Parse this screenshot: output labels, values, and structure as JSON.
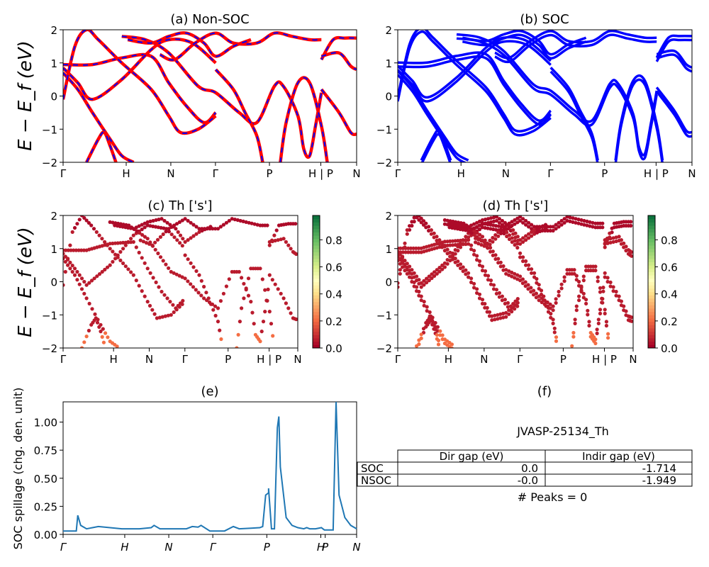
{
  "figure": {
    "ylabel_bands": "E − E_f (eV)",
    "ylabel_spillage": "SOC spillage (chg. den. unit)"
  },
  "band_ticks": [
    "Γ",
    "H",
    "N",
    "Γ",
    "P",
    "H | P",
    "N"
  ],
  "band_yticks": [
    "−2",
    "−1",
    "0",
    "1",
    "2"
  ],
  "colorbar_ticks": [
    "0.0",
    "0.2",
    "0.4",
    "0.6",
    "0.8"
  ],
  "chart_data": [
    {
      "id": "a",
      "type": "line",
      "title": "(a) Non-SOC",
      "ylim": [
        -2,
        2
      ],
      "colors": {
        "solid": "#ff0000",
        "dash": "#0000ff"
      },
      "x_labels": [
        "Γ",
        "H",
        "N",
        "Γ",
        "P",
        "H | P",
        "N"
      ]
    },
    {
      "id": "b",
      "type": "line",
      "title": "(b) SOC",
      "ylim": [
        -2,
        2
      ],
      "colors": {
        "line": "#0000ff"
      },
      "x_labels": [
        "Γ",
        "H",
        "N",
        "Γ",
        "P",
        "H | P",
        "N"
      ]
    },
    {
      "id": "c",
      "type": "scatter",
      "title": "(c)  Th ['s']",
      "ylim": [
        -2,
        2
      ],
      "colorbar": {
        "range": [
          0,
          1
        ],
        "colormap": "RdYlGn"
      },
      "x_labels": [
        "Γ",
        "H",
        "N",
        "Γ",
        "P",
        "H | P",
        "N"
      ]
    },
    {
      "id": "d",
      "type": "scatter",
      "title": "(d) Th ['s']",
      "ylim": [
        -2,
        2
      ],
      "colorbar": {
        "range": [
          0,
          1
        ],
        "colormap": "RdYlGn"
      },
      "x_labels": [
        "Γ",
        "H",
        "N",
        "Γ",
        "P",
        "H | P",
        "N"
      ]
    },
    {
      "id": "e",
      "type": "line",
      "title": "(e)",
      "ylabel": "SOC spillage (chg. den. unit)",
      "ylim": [
        0,
        1.18
      ],
      "yticks": [
        "0.00",
        "0.25",
        "0.50",
        "0.75",
        "1.00"
      ],
      "x_labels": [
        "Γ",
        "H",
        "N",
        "Γ",
        "P",
        "H",
        "P",
        "N"
      ],
      "x": [
        0,
        0.02,
        0.045,
        0.05,
        0.06,
        0.08,
        0.1,
        0.12,
        0.2,
        0.26,
        0.3,
        0.31,
        0.33,
        0.35,
        0.42,
        0.44,
        0.46,
        0.47,
        0.5,
        0.52,
        0.55,
        0.58,
        0.6,
        0.64,
        0.67,
        0.68,
        0.69,
        0.7,
        0.7001,
        0.71,
        0.72,
        0.73,
        0.735,
        0.74,
        0.76,
        0.78,
        0.8,
        0.82,
        0.83,
        0.84,
        0.86,
        0.88,
        0.89,
        0.9,
        0.91,
        0.92,
        0.93,
        0.94,
        0.96,
        0.98,
        1.0
      ],
      "y": [
        0.03,
        0.03,
        0.03,
        0.17,
        0.08,
        0.05,
        0.06,
        0.07,
        0.05,
        0.05,
        0.06,
        0.08,
        0.05,
        0.05,
        0.05,
        0.07,
        0.065,
        0.08,
        0.03,
        0.03,
        0.03,
        0.07,
        0.05,
        0.055,
        0.06,
        0.07,
        0.35,
        0.37,
        0.41,
        0.05,
        0.05,
        0.95,
        1.05,
        0.6,
        0.15,
        0.08,
        0.06,
        0.05,
        0.06,
        0.05,
        0.05,
        0.06,
        0.04,
        0.04,
        0.04,
        0.04,
        1.18,
        0.35,
        0.15,
        0.08,
        0.05
      ]
    },
    {
      "id": "f",
      "type": "table",
      "title": "(f)",
      "subtitle": "JVASP-25134_Th",
      "columns": [
        "",
        "Dir gap (eV)",
        "Indir gap (eV)"
      ],
      "rows": [
        [
          "SOC",
          "0.0",
          "-1.714"
        ],
        [
          "NSOC",
          "-0.0",
          "-1.949"
        ]
      ],
      "footer": "# Peaks = 0"
    }
  ]
}
